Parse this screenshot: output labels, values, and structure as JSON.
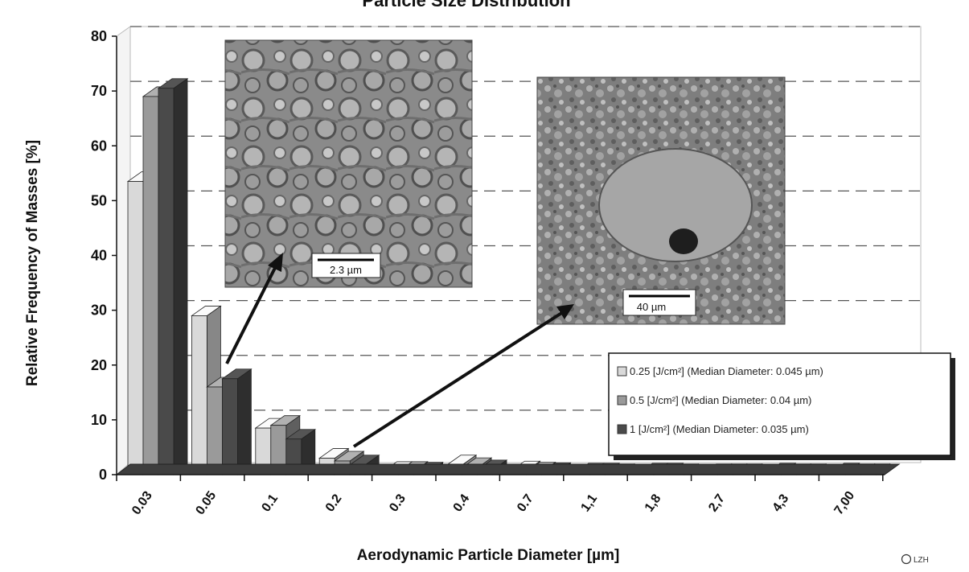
{
  "chart_data": {
    "type": "bar",
    "title": "Particle Size Distribution",
    "xlabel": "Aerodynamic Particle Diameter [µm]",
    "ylabel": "Relative Frequency of Masses [%]",
    "ylim": [
      0,
      80
    ],
    "yticks": [
      "0",
      "10",
      "20",
      "30",
      "40",
      "50",
      "60",
      "70",
      "80"
    ],
    "grid": "dashed horizontal lines",
    "categories": [
      "0.03",
      "0.05",
      "0.1",
      "0.2",
      "0.3",
      "0.4",
      "0.7",
      "1,1",
      "1,8",
      "2,7",
      "4,3",
      "7,00"
    ],
    "series": [
      {
        "name": "0.25 [J/cm²] (Median Diameter: 0.045 µm)",
        "color": "#d9d9d9",
        "values": [
          53.5,
          29,
          8.5,
          3,
          0.6,
          1.8,
          0.7,
          0.3,
          0.3,
          0.2,
          0.3,
          0.3
        ]
      },
      {
        "name": "0.5 [J/cm²] (Median Diameter: 0.04 µm)",
        "color": "#9a9a9a",
        "values": [
          69,
          16,
          9,
          2.5,
          0.6,
          1.3,
          0.5,
          0.3,
          0.3,
          0.2,
          0.2,
          0.2
        ]
      },
      {
        "name": "1 [J/cm²] (Median Diameter: 0.035 µm)",
        "color": "#4a4a4a",
        "values": [
          70.5,
          17.5,
          6.5,
          1.8,
          0.5,
          0.9,
          0.4,
          0.2,
          0.2,
          0.2,
          0.2,
          0.2
        ]
      }
    ],
    "legend_position": "bottom-right",
    "insets": [
      {
        "scale_bar": "2.3 µm"
      },
      {
        "scale_bar": "40 µm"
      }
    ],
    "copyright": "LZH"
  }
}
